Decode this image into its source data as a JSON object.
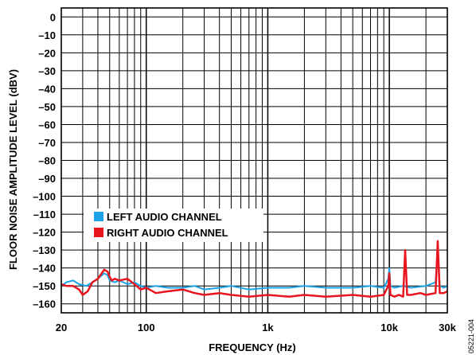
{
  "chart_data": {
    "type": "line",
    "title": "",
    "xlabel": "FREQUENCY (Hz)",
    "ylabel": "FLOOR NOISE AMPLITUDE LEVEL (dBV)",
    "xscale": "log",
    "xlim": [
      20,
      30000
    ],
    "ylim": [
      -165,
      5
    ],
    "grid": true,
    "legend_position": "left-middle",
    "x_ticks": [
      {
        "value": 20,
        "label": "20"
      },
      {
        "value": 100,
        "label": "100"
      },
      {
        "value": 1000,
        "label": "1k"
      },
      {
        "value": 10000,
        "label": "10k"
      },
      {
        "value": 30000,
        "label": "30k"
      }
    ],
    "y_ticks": [
      {
        "value": 0,
        "label": "0"
      },
      {
        "value": -10,
        "label": "–10"
      },
      {
        "value": -20,
        "label": "–20"
      },
      {
        "value": -30,
        "label": "–30"
      },
      {
        "value": -40,
        "label": "–40"
      },
      {
        "value": -50,
        "label": "–50"
      },
      {
        "value": -60,
        "label": "–60"
      },
      {
        "value": -70,
        "label": "–70"
      },
      {
        "value": -80,
        "label": "–80"
      },
      {
        "value": -90,
        "label": "–90"
      },
      {
        "value": -100,
        "label": "–100"
      },
      {
        "value": -110,
        "label": "–110"
      },
      {
        "value": -120,
        "label": "–120"
      },
      {
        "value": -130,
        "label": "–130"
      },
      {
        "value": -140,
        "label": "–140"
      },
      {
        "value": -150,
        "label": "–150"
      },
      {
        "value": -160,
        "label": "–160"
      }
    ],
    "series": [
      {
        "name": "LEFT AUDIO CHANNEL",
        "color": "#1aa3e8",
        "x": [
          20,
          22,
          25,
          28,
          32,
          36,
          40,
          45,
          48,
          50,
          55,
          60,
          70,
          80,
          90,
          100,
          120,
          150,
          200,
          250,
          300,
          400,
          500,
          700,
          1000,
          1500,
          2000,
          3000,
          5000,
          7000,
          9000,
          9800,
          10000,
          10200,
          11000,
          13000,
          15000,
          20000,
          24000,
          25000,
          26000,
          28000,
          30000
        ],
        "y": [
          -150,
          -148,
          -147,
          -149,
          -150,
          -148,
          -146,
          -143,
          -144,
          -147,
          -148,
          -147,
          -149,
          -148,
          -150,
          -151,
          -150,
          -151,
          -151,
          -150,
          -152,
          -151,
          -150,
          -152,
          -151,
          -151,
          -150,
          -151,
          -151,
          -150,
          -151,
          -146,
          -140,
          -150,
          -151,
          -150,
          -151,
          -150,
          -148,
          -130,
          -150,
          -151,
          -150
        ]
      },
      {
        "name": "RIGHT AUDIO CHANNEL",
        "color": "#e8141e",
        "x": [
          20,
          22,
          25,
          28,
          30,
          33,
          36,
          40,
          45,
          48,
          50,
          52,
          55,
          60,
          70,
          80,
          90,
          100,
          120,
          150,
          200,
          250,
          300,
          400,
          500,
          700,
          1000,
          1500,
          2000,
          3000,
          5000,
          7000,
          9000,
          9800,
          10000,
          10200,
          11000,
          12000,
          13000,
          13500,
          14000,
          15000,
          18000,
          20000,
          24000,
          25000,
          26000,
          28000,
          30000
        ],
        "y": [
          -149,
          -150,
          -150,
          -152,
          -155,
          -153,
          -148,
          -146,
          -141,
          -142,
          -145,
          -147,
          -146,
          -147,
          -146,
          -149,
          -152,
          -151,
          -154,
          -153,
          -152,
          -154,
          -155,
          -154,
          -155,
          -156,
          -155,
          -156,
          -155,
          -156,
          -155,
          -156,
          -155,
          -150,
          -143,
          -155,
          -156,
          -155,
          -156,
          -130,
          -155,
          -155,
          -154,
          -155,
          -154,
          -125,
          -154,
          -154,
          -153
        ]
      }
    ]
  },
  "figure_id": "05221-004"
}
